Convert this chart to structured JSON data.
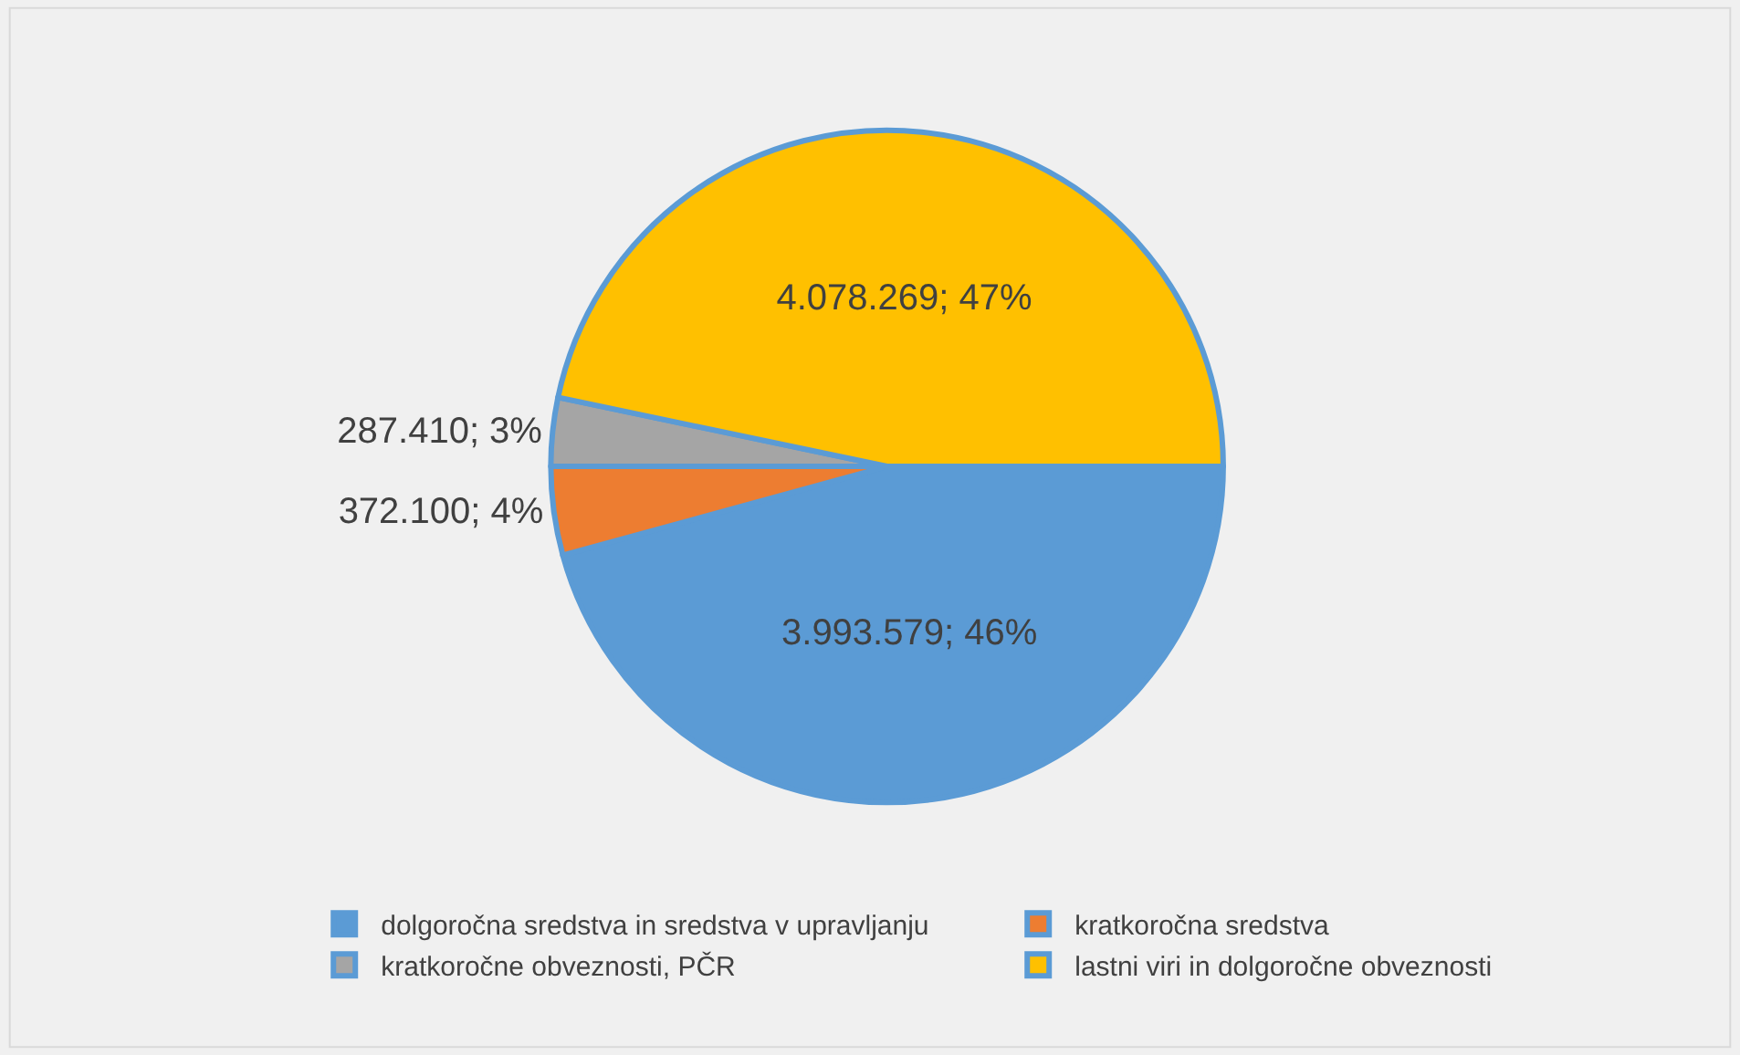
{
  "chart_data": {
    "type": "pie",
    "categories": [
      "dolgoročna sredstva in sredstva v upravljanju",
      "kratkoročna sredstva",
      "kratkoročne obveznosti, PČR",
      "lastni viri in dolgoročne obveznosti"
    ],
    "values": [
      3993579,
      372100,
      287410,
      4078269
    ],
    "colors": [
      "#5b9bd5",
      "#ed7d31",
      "#a5a5a5",
      "#ffc000"
    ],
    "value_labels": [
      "3.993.579; 46%",
      "372.100; 4%",
      "287.410; 3%",
      "4.078.269; 47%"
    ],
    "legend": "bottom"
  }
}
